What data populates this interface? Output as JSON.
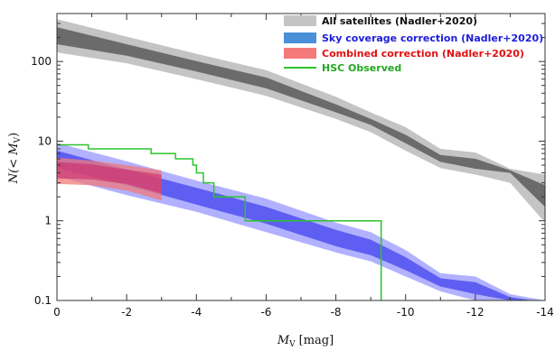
{
  "chart_data": {
    "type": "area",
    "title": "",
    "xlabel": "[mag]",
    "xlabel_symbol": "M",
    "xlabel_sub": "V",
    "ylabel_prefix": "N(< M",
    "ylabel_sub": "V",
    "ylabel_suffix": ")",
    "xlim": [
      0,
      -14
    ],
    "ylim": [
      0.1,
      400
    ],
    "yscale": "log",
    "x_ticks": [
      0,
      -2,
      -4,
      -6,
      -8,
      -10,
      -12,
      -14
    ],
    "x_tick_labels": [
      "0",
      "-2",
      "-4",
      "-6",
      "-8",
      "-10",
      "-12",
      "-14"
    ],
    "y_ticks": [
      0.1,
      1,
      10,
      100
    ],
    "y_tick_labels": [
      "0.1",
      "1",
      "10",
      "100"
    ],
    "legend_position": "top-right",
    "series": [
      {
        "name": "All satellites (Nadler+2020)",
        "color": "#c4c4c4",
        "inner_color": "#6b6b6b",
        "bands": {
          "x": [
            0,
            -2,
            -4,
            -6,
            -8,
            -9,
            -10,
            -11,
            -12,
            -13,
            -14
          ],
          "outer_lo": [
            130,
            95,
            60,
            37,
            19,
            13,
            7.6,
            4.6,
            3.8,
            3.0,
            0.95
          ],
          "outer_hi": [
            340,
            205,
            125,
            78,
            36,
            23,
            15,
            8.0,
            7.2,
            4.5,
            3.8
          ],
          "inner_lo": [
            165,
            118,
            75,
            46,
            23,
            16,
            9.4,
            5.5,
            4.5,
            4.0,
            1.5
          ],
          "inner_hi": [
            270,
            165,
            101,
            63,
            29,
            19,
            12,
            6.7,
            6.0,
            4.3,
            2.8
          ]
        }
      },
      {
        "name": "Sky coverage correction (Nadler+2020)",
        "color": "#4a90d9",
        "band_outer_color": "#a9a9ff",
        "band_inner_color": "#5050f0",
        "bands": {
          "x": [
            0,
            -2,
            -4,
            -6,
            -8,
            -9,
            -10,
            -11,
            -12,
            -13,
            -14
          ],
          "outer_lo": [
            3.6,
            2.1,
            1.3,
            0.72,
            0.4,
            0.31,
            0.2,
            0.13,
            0.1,
            0.09,
            0.08
          ],
          "outer_hi": [
            9.5,
            5.6,
            3.2,
            1.9,
            0.95,
            0.72,
            0.43,
            0.22,
            0.2,
            0.12,
            0.1
          ],
          "inner_lo": [
            4.6,
            2.8,
            1.6,
            0.92,
            0.48,
            0.37,
            0.24,
            0.15,
            0.12,
            0.1,
            0.09
          ],
          "inner_hi": [
            7.6,
            4.4,
            2.6,
            1.5,
            0.77,
            0.58,
            0.35,
            0.19,
            0.17,
            0.11,
            0.095
          ]
        }
      },
      {
        "name": "Combined correction (Nadler+2020)",
        "color": "#f47a7a",
        "band_outer_color": "#f27a7a",
        "band_inner_color": "#cc2a6a",
        "bands": {
          "x": [
            0,
            -1,
            -2,
            -3
          ],
          "outer_lo": [
            2.9,
            2.8,
            2.4,
            1.8
          ],
          "outer_hi": [
            6.2,
            5.7,
            5.0,
            4.3
          ],
          "inner_lo": [
            3.4,
            3.3,
            2.9,
            2.2
          ],
          "inner_hi": [
            5.5,
            5.1,
            4.4,
            3.8
          ]
        }
      },
      {
        "name": "HSC Observed",
        "color": "#2bc52b",
        "step_x": [
          0,
          -0.9,
          -0.9,
          -2.7,
          -2.7,
          -3.4,
          -3.4,
          -3.9,
          -3.9,
          -4.0,
          -4.0,
          -4.2,
          -4.2,
          -4.5,
          -4.5,
          -5.4,
          -5.4,
          -9.3,
          -9.3
        ],
        "step_y": [
          9,
          9,
          8,
          8,
          7,
          7,
          6,
          6,
          5,
          5,
          4,
          4,
          3,
          3,
          2,
          2,
          1,
          1,
          0.09
        ]
      }
    ]
  }
}
